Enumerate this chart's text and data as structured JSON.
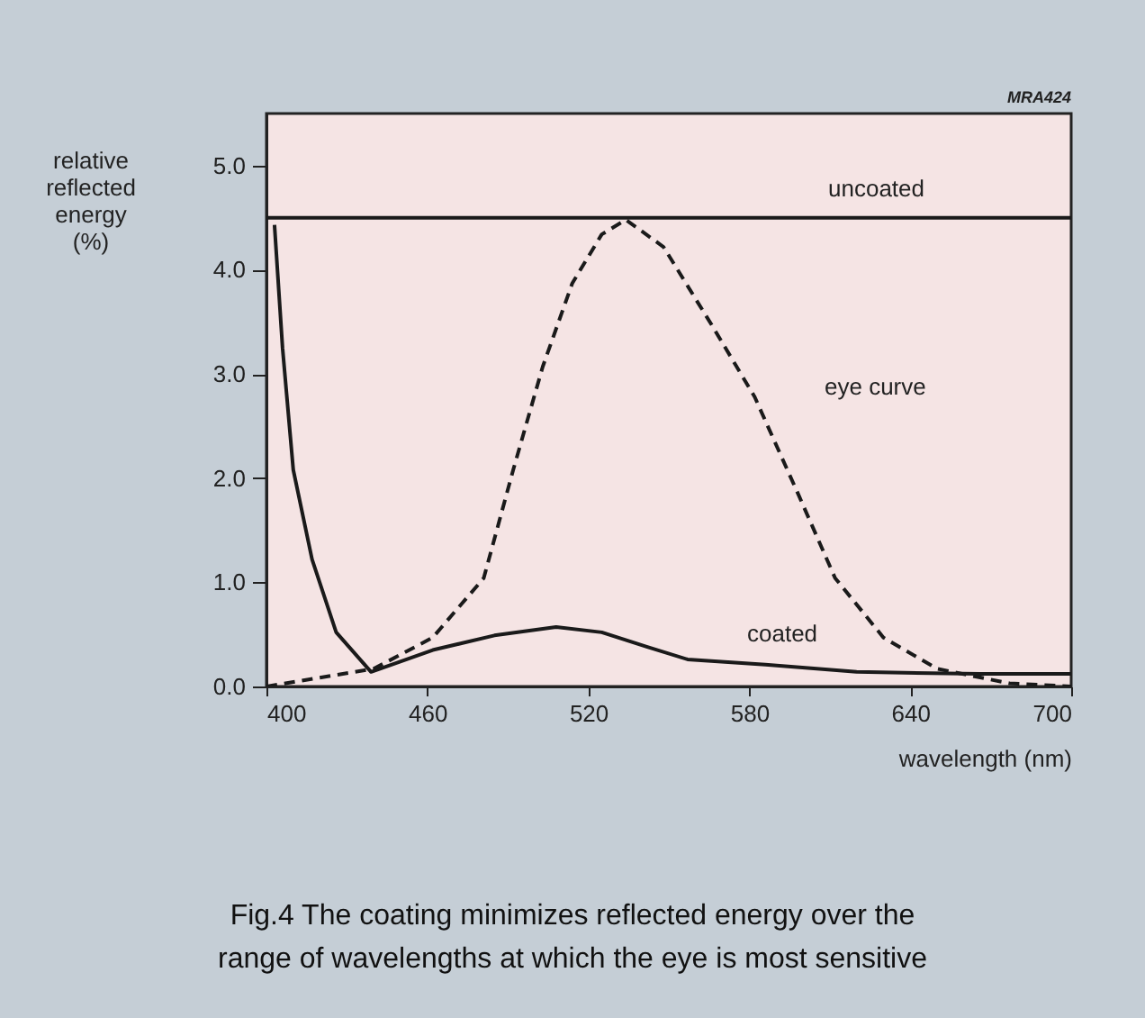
{
  "chart_data": {
    "type": "line",
    "xlabel": "wavelength (nm)",
    "ylabel": "relative reflected energy (%)",
    "xlim": [
      400,
      700
    ],
    "xticks": [
      400,
      460,
      520,
      580,
      640,
      700
    ],
    "ylim": [
      0,
      5.5
    ],
    "yticks": [
      {
        "value": 0,
        "label": "0.0"
      },
      {
        "value": 1,
        "label": "1.0"
      },
      {
        "value": 2,
        "label": "2.0"
      },
      {
        "value": 3,
        "label": "3.0"
      },
      {
        "value": 4,
        "label": "4.0"
      },
      {
        "value": 5,
        "label": "5.0"
      }
    ],
    "grid": false,
    "marker": "none",
    "series": [
      {
        "name": "uncoated",
        "color": "#1a1a1a",
        "line_style": "solid",
        "x": [
          400,
          700
        ],
        "values": [
          4.5,
          4.5
        ]
      },
      {
        "name": "eye curve",
        "color": "#1a1a1a",
        "line_style": "dashed",
        "x": [
          400,
          440,
          462,
          481,
          492,
          503,
          514,
          525,
          534,
          548,
          566,
          582,
          598,
          612,
          630,
          650,
          677,
          700
        ],
        "values": [
          0.0,
          0.17,
          0.47,
          1.04,
          2.08,
          3.07,
          3.87,
          4.34,
          4.48,
          4.22,
          3.47,
          2.78,
          1.86,
          1.04,
          0.47,
          0.17,
          0.03,
          0.0
        ]
      },
      {
        "name": "coated",
        "color": "#1a1a1a",
        "line_style": "solid",
        "x": [
          403,
          406,
          410,
          417,
          426,
          439,
          462,
          485,
          508,
          525,
          542,
          557,
          586,
          620,
          666,
          700
        ],
        "values": [
          4.43,
          3.25,
          2.08,
          1.22,
          0.52,
          0.14,
          0.35,
          0.49,
          0.57,
          0.52,
          0.38,
          0.26,
          0.21,
          0.14,
          0.12,
          0.12
        ]
      }
    ],
    "annotations": [
      "MRA424",
      "Fig.4  The coating minimizes reflected energy over the\nrange of wavelengths at which the eye is most sensitive"
    ]
  }
}
